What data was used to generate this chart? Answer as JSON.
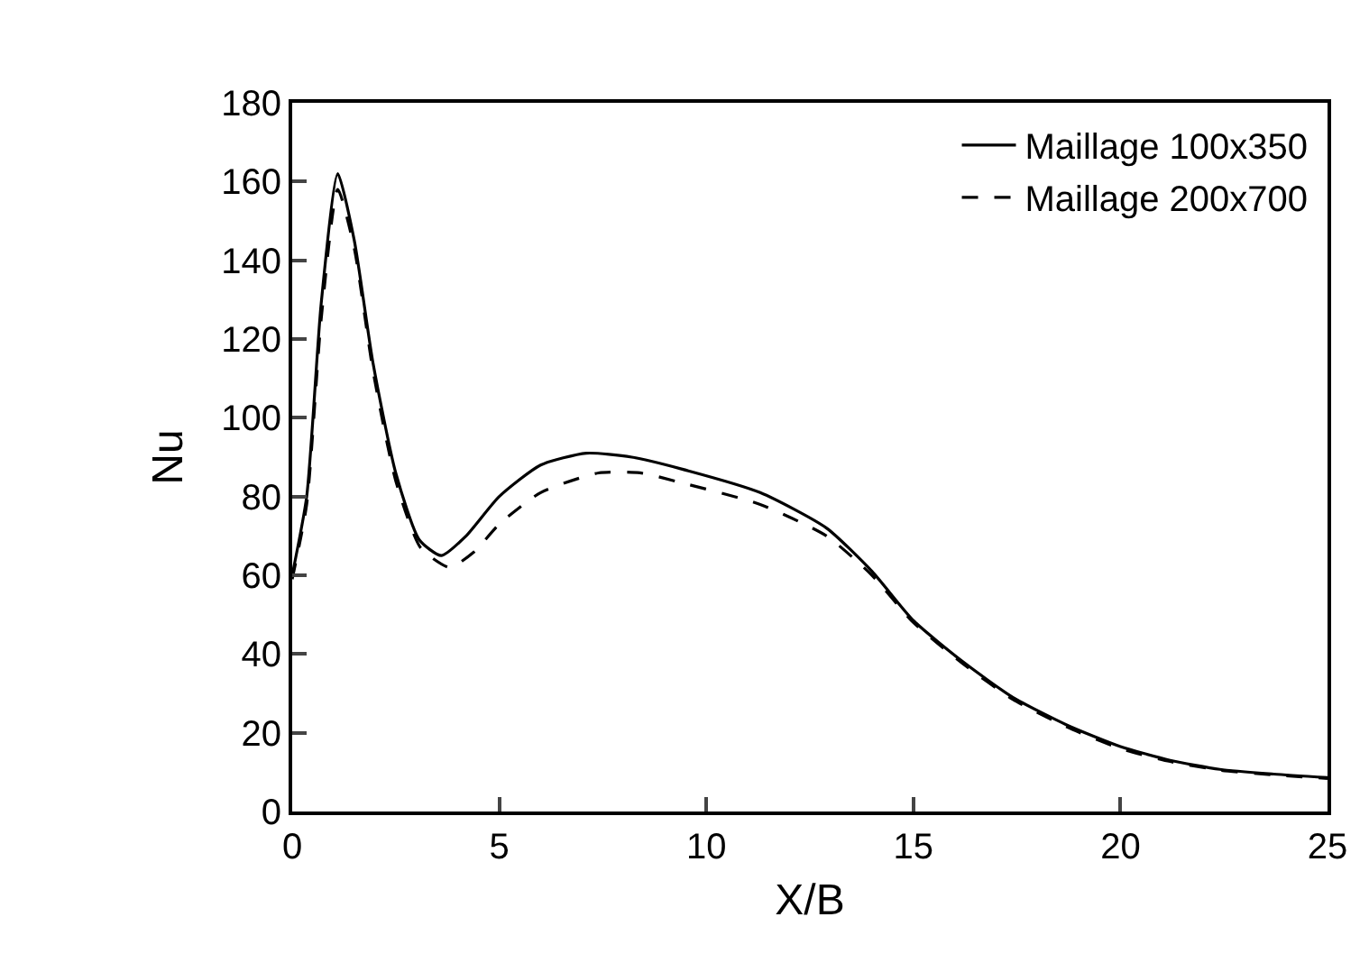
{
  "chart_data": {
    "type": "line",
    "xlabel": "X/B",
    "ylabel": "Nu",
    "xlim": [
      0,
      25
    ],
    "ylim": [
      0,
      180
    ],
    "xticks": [
      0,
      5,
      10,
      15,
      20,
      25
    ],
    "yticks": [
      0,
      20,
      40,
      60,
      80,
      100,
      120,
      140,
      160,
      180
    ],
    "legend": "top right",
    "marker": "none",
    "series": [
      {
        "name": "Maillage 100x350",
        "color": "#000000",
        "line_style": "solid",
        "x": [
          0,
          0.35,
          0.7,
          1.1,
          1.5,
          1.95,
          2.5,
          3.07,
          3.6,
          4.2,
          5,
          6,
          7.1,
          8.2,
          9.4,
          11.3,
          12.9,
          14,
          15,
          16.2,
          17.4,
          18.7,
          20,
          21.2,
          22.4,
          23.7,
          25
        ],
        "values": [
          60,
          80,
          129,
          162,
          145,
          114,
          86,
          69,
          65,
          70,
          80,
          88,
          91,
          90,
          87,
          81,
          72,
          61,
          48.5,
          38,
          29,
          22,
          16.5,
          13,
          10.7,
          9.5,
          8.6
        ]
      },
      {
        "name": "Maillage 200x700",
        "color": "#000000",
        "line_style": "dashed",
        "x": [
          0,
          0.35,
          0.7,
          1.1,
          1.5,
          1.95,
          2.5,
          3.1,
          3.8,
          4.4,
          5,
          6,
          7.4,
          8.4,
          9.4,
          11.3,
          12.9,
          14,
          15,
          16.2,
          17.4,
          18.7,
          20,
          21.2,
          22.4,
          23.7,
          25
        ],
        "values": [
          59,
          78,
          125,
          158,
          143,
          112,
          84,
          67,
          62,
          66,
          73,
          81,
          86,
          86,
          83.5,
          78,
          70,
          60,
          48,
          37.5,
          28.5,
          21.5,
          16,
          12.7,
          10.5,
          9.3,
          8.4
        ]
      }
    ]
  }
}
